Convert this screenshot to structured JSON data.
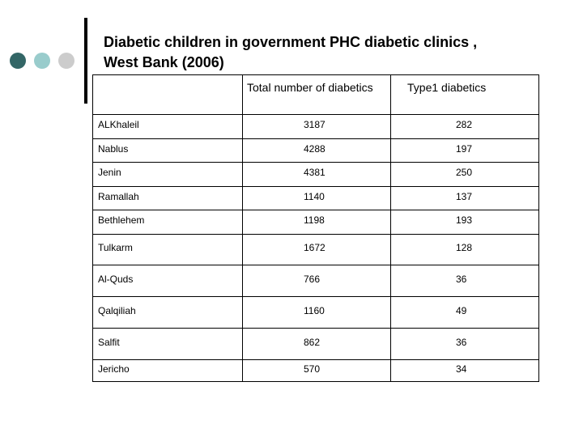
{
  "title": {
    "line1": "Diabetic children in government PHC diabetic clinics ,",
    "line2": "West Bank (2006)"
  },
  "table": {
    "headers": [
      "",
      "Total number of diabetics",
      "Type1 diabetics"
    ],
    "rows": [
      [
        "ALKhaleil",
        "3187",
        "282"
      ],
      [
        "Nablus",
        "4288",
        "197"
      ],
      [
        "Jenin",
        "4381",
        "250"
      ],
      [
        "Ramallah",
        "1140",
        "137"
      ],
      [
        "Bethlehem",
        "1198",
        "193"
      ],
      [
        "Tulkarm",
        "1672",
        "128"
      ],
      [
        "Al-Quds",
        "766",
        "36"
      ],
      [
        "Qalqiliah",
        "1160",
        "49"
      ],
      [
        "Salfit",
        "862",
        "36"
      ],
      [
        "Jericho",
        "570",
        "34"
      ]
    ]
  },
  "colors": {
    "bullet1": "#336666",
    "bullet2": "#99cccc",
    "bullet3": "#cccccc"
  }
}
